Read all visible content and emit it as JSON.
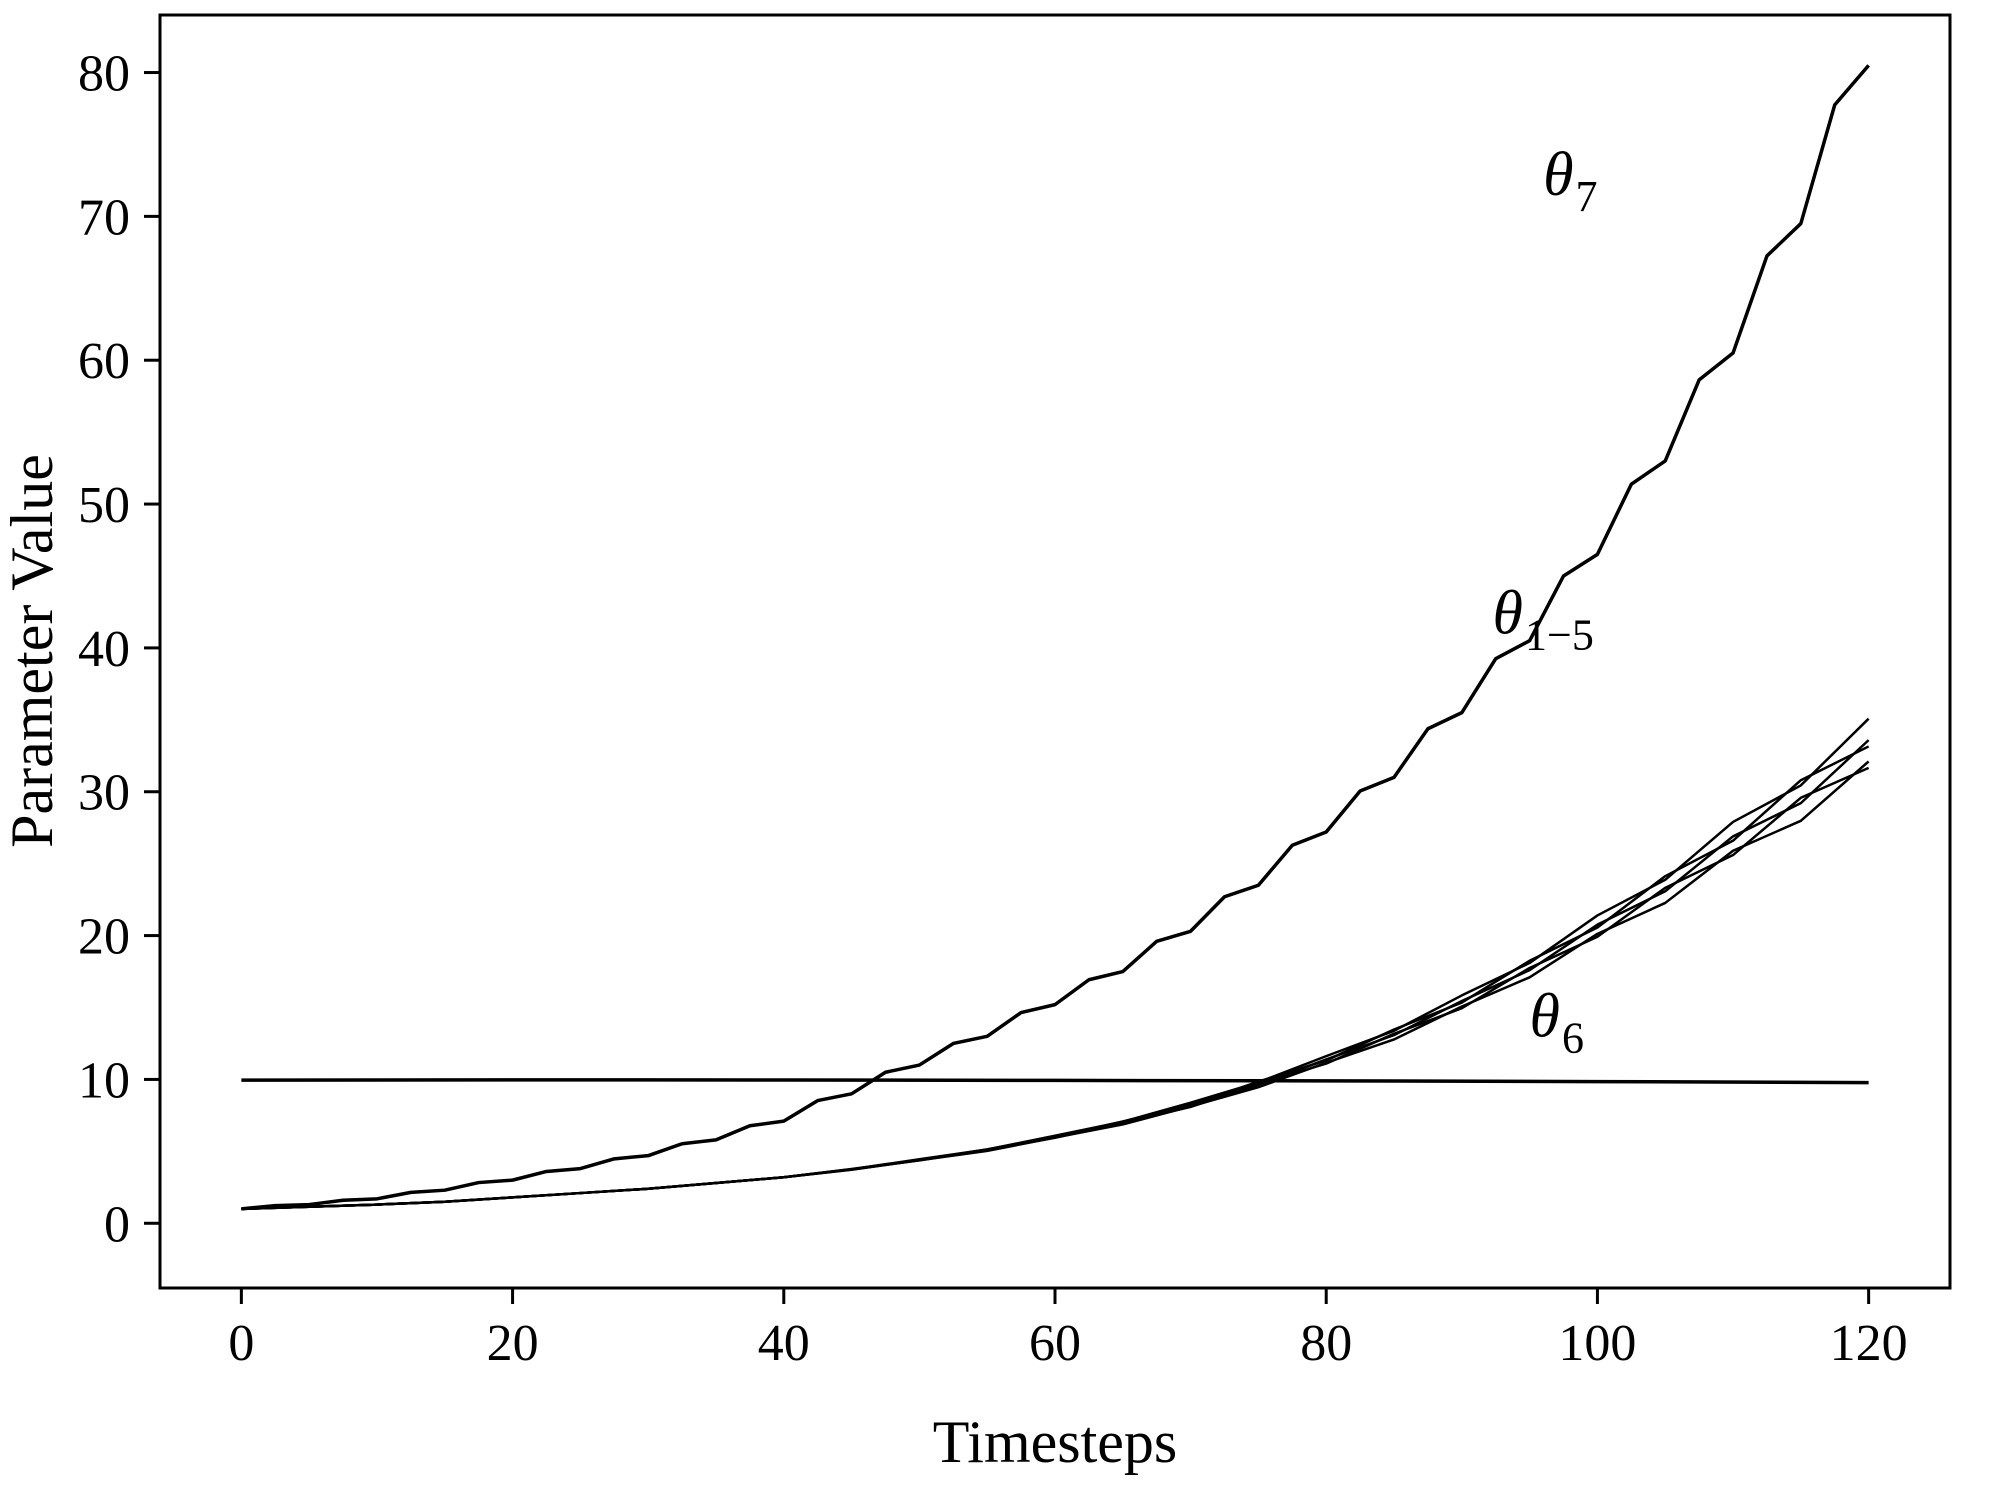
{
  "chart_data": {
    "type": "line",
    "title": "",
    "xlabel": "Timesteps",
    "ylabel": "Parameter Value",
    "xlim": [
      -6,
      126
    ],
    "ylim": [
      -4.5,
      84
    ],
    "xticks": [
      0,
      20,
      40,
      60,
      80,
      100,
      120
    ],
    "yticks": [
      0,
      10,
      20,
      30,
      40,
      50,
      60,
      70,
      80
    ],
    "grid": false,
    "legend": "none",
    "line_color": "#000000",
    "background_color": "#ffffff",
    "annotations": [
      {
        "name": "theta-7-label",
        "symbol": "θ",
        "sub": "7",
        "x": 98,
        "y": 71.5
      },
      {
        "name": "theta-1-5-label",
        "symbol": "θ",
        "sub": "1−5",
        "x": 96,
        "y": 41
      },
      {
        "name": "theta-6-label",
        "symbol": "θ",
        "sub": "6",
        "x": 97,
        "y": 13
      }
    ],
    "series": [
      {
        "name": "theta_7",
        "stroke_width": 3.5,
        "x": [
          0,
          2.5,
          5,
          7.5,
          10,
          12.5,
          15,
          17.5,
          20,
          22.5,
          25,
          27.5,
          30,
          32.5,
          35,
          37.5,
          40,
          42.5,
          45,
          47.5,
          50,
          52.5,
          55,
          57.5,
          60,
          62.5,
          65,
          67.5,
          70,
          72.5,
          75,
          77.5,
          80,
          82.5,
          85,
          87.5,
          90,
          92.5,
          95,
          97.5,
          100,
          102.5,
          105,
          107.5,
          110,
          112.5,
          115,
          117.5,
          120
        ],
        "values": [
          1.0,
          1.23,
          1.3,
          1.6,
          1.7,
          2.15,
          2.3,
          2.83,
          3.0,
          3.6,
          3.8,
          4.48,
          4.7,
          5.53,
          5.8,
          6.78,
          7.1,
          8.53,
          9.0,
          10.5,
          11.0,
          12.5,
          13.0,
          14.65,
          15.2,
          16.93,
          17.5,
          19.6,
          20.3,
          22.7,
          23.5,
          26.28,
          27.2,
          30.05,
          31.0,
          34.38,
          35.5,
          39.25,
          40.5,
          45.0,
          46.5,
          51.38,
          53.0,
          58.63,
          60.5,
          67.25,
          69.5,
          77.75,
          80.5
        ]
      },
      {
        "name": "theta_6",
        "stroke_width": 3.5,
        "x": [
          0,
          20,
          40,
          60,
          80,
          100,
          120
        ],
        "values": [
          9.95,
          9.97,
          9.96,
          9.93,
          9.9,
          9.85,
          9.78
        ]
      },
      {
        "name": "theta_1",
        "stroke_width": 2.5,
        "x": [
          0,
          5,
          10,
          15,
          20,
          25,
          30,
          35,
          40,
          45,
          50,
          55,
          60,
          65,
          70,
          75,
          80,
          85,
          90,
          95,
          100,
          105,
          110,
          115,
          120
        ],
        "values": [
          1.0,
          1.15,
          1.3,
          1.5,
          1.8,
          2.1,
          2.4,
          2.8,
          3.2,
          3.72,
          4.38,
          5.03,
          5.96,
          6.87,
          8.12,
          9.46,
          11.16,
          12.78,
          15.07,
          17.1,
          20.12,
          22.27,
          25.9,
          27.98,
          32.11
        ]
      },
      {
        "name": "theta_2",
        "stroke_width": 2.5,
        "x": [
          0,
          5,
          10,
          15,
          20,
          25,
          30,
          35,
          40,
          45,
          50,
          55,
          60,
          65,
          70,
          75,
          80,
          85,
          90,
          95,
          100,
          105,
          110,
          115,
          120
        ],
        "values": [
          1.0,
          1.15,
          1.3,
          1.5,
          1.8,
          2.1,
          2.4,
          2.8,
          3.2,
          3.75,
          4.37,
          5.1,
          5.94,
          6.99,
          8.09,
          9.68,
          11.1,
          13.17,
          14.95,
          17.75,
          19.92,
          23.32,
          25.6,
          29.58,
          31.66
        ]
      },
      {
        "name": "theta_3",
        "stroke_width": 2.5,
        "x": [
          0,
          5,
          10,
          15,
          20,
          25,
          30,
          35,
          40,
          45,
          50,
          55,
          60,
          65,
          70,
          75,
          80,
          85,
          90,
          95,
          100,
          105,
          110,
          115,
          120
        ],
        "values": [
          1.0,
          1.15,
          1.3,
          1.5,
          1.8,
          2.1,
          2.4,
          2.8,
          3.2,
          3.74,
          4.41,
          5.08,
          6.03,
          6.96,
          8.25,
          9.63,
          11.39,
          13.08,
          15.45,
          17.6,
          20.76,
          23.08,
          26.9,
          29.21,
          33.59
        ]
      },
      {
        "name": "theta_4",
        "stroke_width": 2.5,
        "x": [
          0,
          5,
          10,
          15,
          20,
          25,
          30,
          35,
          40,
          45,
          50,
          55,
          60,
          65,
          70,
          75,
          80,
          85,
          90,
          95,
          100,
          105,
          110,
          115,
          120
        ],
        "values": [
          1.0,
          1.15,
          1.3,
          1.5,
          1.8,
          2.1,
          2.4,
          2.8,
          3.2,
          3.77,
          4.4,
          5.14,
          6.01,
          7.08,
          8.21,
          9.85,
          11.32,
          13.47,
          15.34,
          18.25,
          20.56,
          24.13,
          26.6,
          30.8,
          33.15
        ]
      },
      {
        "name": "theta_5",
        "stroke_width": 2.5,
        "x": [
          0,
          5,
          10,
          15,
          20,
          25,
          30,
          35,
          40,
          45,
          50,
          55,
          60,
          65,
          70,
          75,
          80,
          85,
          90,
          95,
          100,
          105,
          110,
          115,
          120
        ],
        "values": [
          1.0,
          1.15,
          1.3,
          1.5,
          1.8,
          2.1,
          2.4,
          2.8,
          3.2,
          3.76,
          4.45,
          5.13,
          6.09,
          7.06,
          8.38,
          9.8,
          11.62,
          13.38,
          15.84,
          18.1,
          21.4,
          23.88,
          27.9,
          30.44,
          35.08
        ]
      }
    ]
  }
}
